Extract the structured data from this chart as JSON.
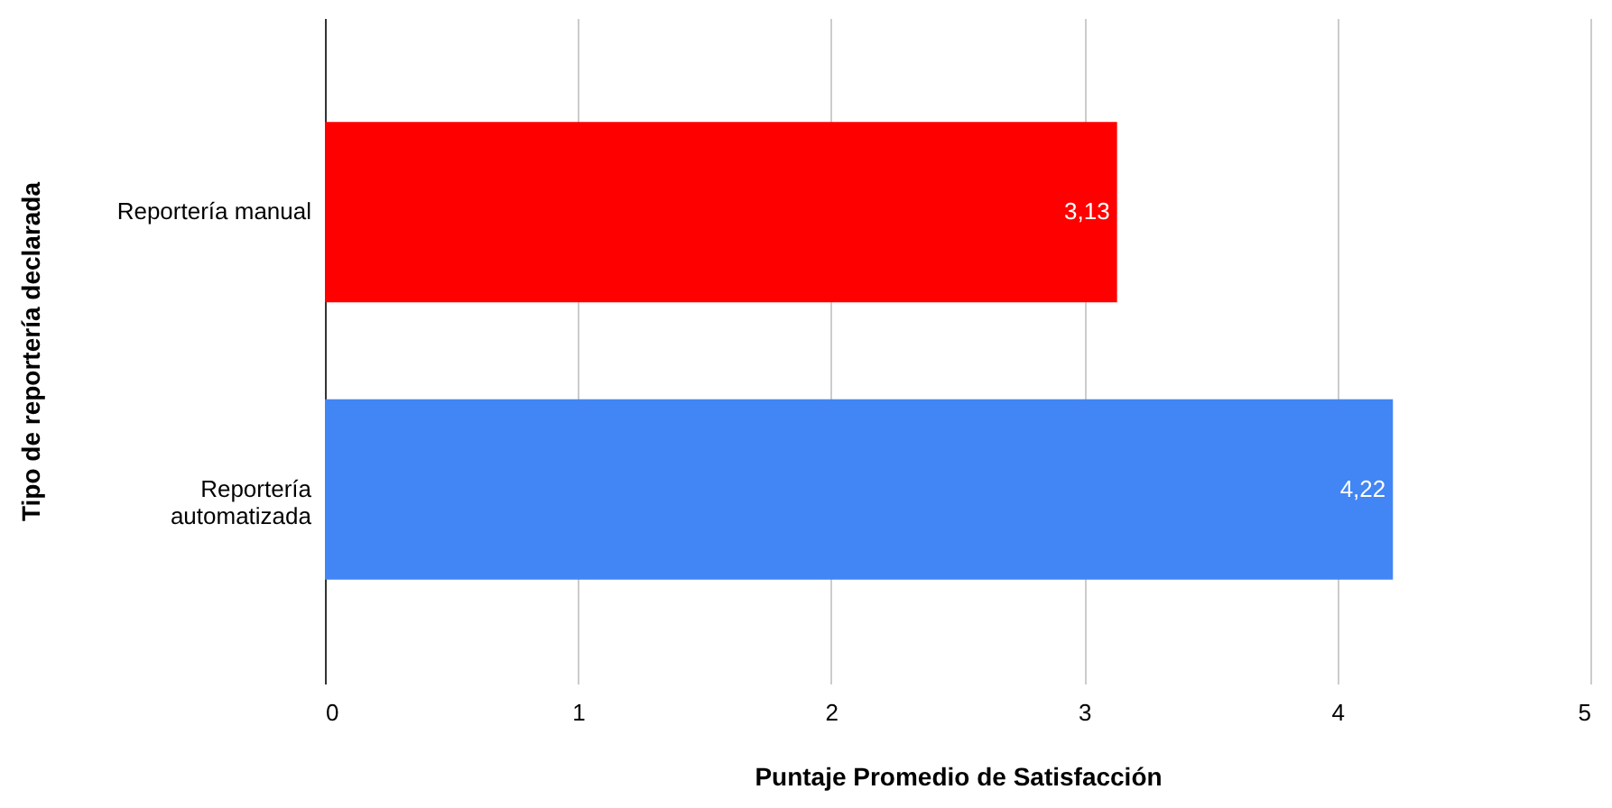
{
  "chart_data": {
    "type": "bar",
    "orientation": "horizontal",
    "xlabel": "Puntaje Promedio de Satisfacción",
    "ylabel": "Tipo de reportería declarada",
    "categories": [
      "Reportería manual",
      "Reportería automatizada"
    ],
    "values": [
      3.13,
      4.22
    ],
    "colors": [
      "#ff0000",
      "#4285f4"
    ],
    "value_labels": [
      "3,13",
      "4,22"
    ],
    "xlim": [
      0,
      5
    ],
    "xticks": [
      0,
      1,
      2,
      3,
      4,
      5
    ],
    "grid": "x"
  }
}
